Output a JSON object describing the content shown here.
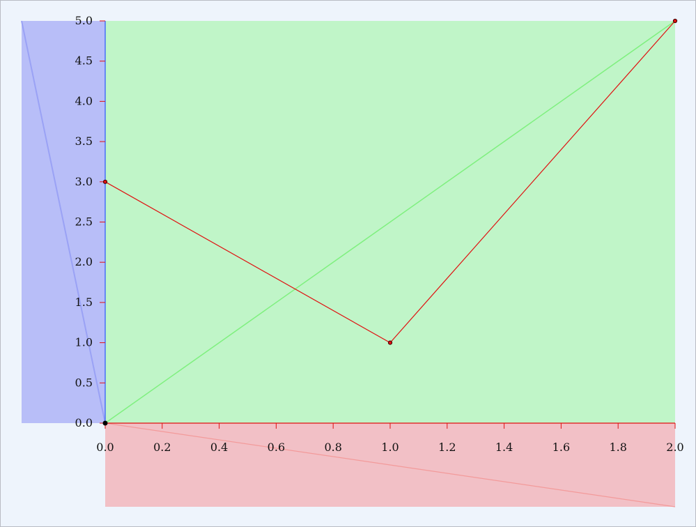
{
  "chart_data": {
    "type": "line",
    "title": "",
    "xlabel": "",
    "ylabel": "",
    "xlim": [
      0.0,
      2.0
    ],
    "ylim": [
      0.0,
      5.0
    ],
    "x_ticks": [
      "0.0",
      "0.2",
      "0.4",
      "0.6",
      "0.8",
      "1.0",
      "1.2",
      "1.4",
      "1.6",
      "1.8",
      "2.0"
    ],
    "y_ticks": [
      "0.0",
      "0.5",
      "1.0",
      "1.5",
      "2.0",
      "2.5",
      "3.0",
      "3.5",
      "4.0",
      "4.5",
      "5.0"
    ],
    "grid": false,
    "legend": "none",
    "series": [
      {
        "points": [
          {
            "x": 0.0,
            "y": 3.0
          },
          {
            "x": 1.0,
            "y": 1.0
          },
          {
            "x": 2.0,
            "y": 5.0
          }
        ],
        "color": "#e01010"
      }
    ],
    "guides": {
      "diagonal_color": "#7ff07f",
      "plot_fill": "#c0f5c8",
      "y_axis_panel_fill": "#b8bef8",
      "x_axis_panel_fill": "#f2c0c6",
      "y_axis_color": "#2a55ff",
      "x_axis_color": "#e01010",
      "origin_color": "#000000"
    }
  }
}
